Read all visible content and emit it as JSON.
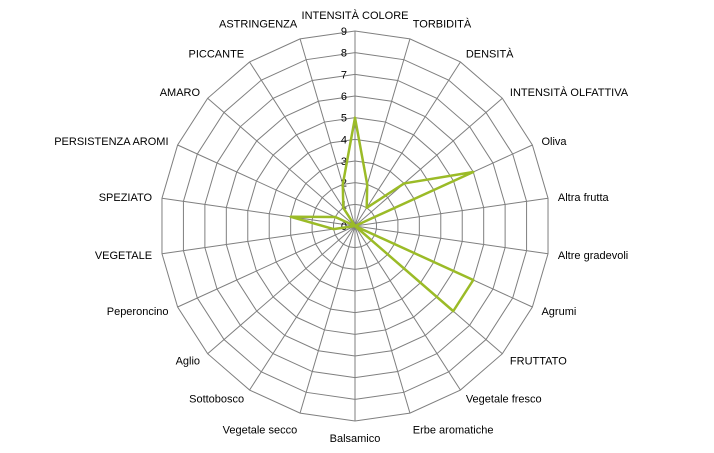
{
  "chart_data": {
    "type": "radar",
    "title": "",
    "categories": [
      "INTENSITÀ COLORE",
      "TORBIDITÀ",
      "DENSITÀ",
      "INTENSITÀ OLFATTIVA",
      "Oliva",
      "Altra frutta",
      "Altre gradevoli",
      "Agrumi",
      "FRUTTATO",
      "Vegetale fresco",
      "Erbe aromatiche",
      "Balsamico",
      "Vegetale secco",
      "Sottobosco",
      "Aglio",
      "Peperoncino",
      "VEGETALE",
      "SPEZIATO",
      "PERSISTENZA AROMI",
      "AMARO",
      "PICCANTE",
      "ASTRINGENZA"
    ],
    "series": [
      {
        "name": "",
        "color": "#9bbb27",
        "values": [
          5,
          2,
          1,
          3,
          6,
          0,
          0,
          6,
          6,
          0,
          0,
          0,
          0,
          0,
          0,
          0,
          1,
          3,
          1,
          0,
          1,
          2
        ]
      }
    ],
    "rlim": [
      0,
      9
    ],
    "ticks": [
      "0",
      "1",
      "2",
      "3",
      "4",
      "5",
      "6",
      "7",
      "8",
      "9"
    ],
    "grid": true,
    "legend": "none"
  }
}
